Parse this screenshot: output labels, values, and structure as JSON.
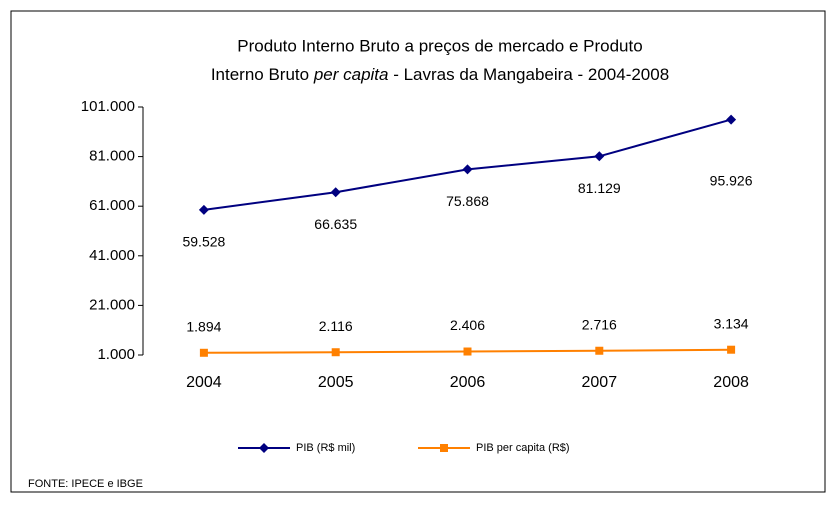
{
  "chart_data": {
    "type": "line",
    "title": [
      "Produto Interno Bruto a preços de mercado  e  Produto",
      [
        "Interno Bruto ",
        "per capita",
        "  - Lavras da Mangabeira - 2004-2008"
      ]
    ],
    "categories": [
      "2004",
      "2005",
      "2006",
      "2007",
      "2008"
    ],
    "series": [
      {
        "name": "PIB (R$ mil)",
        "color": "#000080",
        "marker": "diamond",
        "values": [
          59528,
          66635,
          75868,
          81129,
          95926
        ],
        "value_labels": [
          "59.528",
          "66.635",
          "75.868",
          "81.129",
          "95.926"
        ]
      },
      {
        "name": "PIB per capita (R$)",
        "color": "#ff8000",
        "marker": "square",
        "values": [
          1894,
          2116,
          2406,
          2716,
          3134
        ],
        "value_labels": [
          "1.894",
          "2.116",
          "2.406",
          "2.716",
          "3.134"
        ]
      }
    ],
    "ylim": [
      1000,
      101000
    ],
    "yticks": [
      {
        "value": 1000,
        "label": "1.000"
      },
      {
        "value": 21000,
        "label": "21.000"
      },
      {
        "value": 41000,
        "label": "41.000"
      },
      {
        "value": 61000,
        "label": "61.000"
      },
      {
        "value": 81000,
        "label": "81.000"
      },
      {
        "value": 101000,
        "label": "101.000"
      }
    ],
    "legend": "bottom",
    "source": "FONTE: IPECE e IBGE"
  }
}
